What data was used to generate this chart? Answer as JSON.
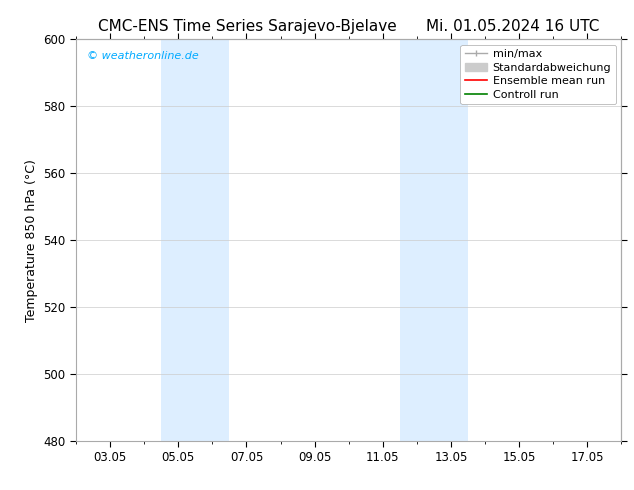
{
  "title_left": "CMC-ENS Time Series Sarajevo-Bjelave",
  "title_right": "Mi. 01.05.2024 16 UTC",
  "ylabel": "Temperature 850 hPa (°C)",
  "ylim": [
    480,
    600
  ],
  "yticks": [
    480,
    500,
    520,
    540,
    560,
    580,
    600
  ],
  "xtick_labels": [
    "03.05",
    "05.05",
    "07.05",
    "09.05",
    "11.05",
    "13.05",
    "15.05",
    "17.05"
  ],
  "xtick_positions": [
    2,
    4,
    6,
    8,
    10,
    12,
    14,
    16
  ],
  "xlim": [
    1,
    17
  ],
  "background_color": "#ffffff",
  "plot_bg_color": "#ffffff",
  "shaded_bands": [
    {
      "x_start": 3.5,
      "x_end": 5.5,
      "color": "#ddeeff"
    },
    {
      "x_start": 10.5,
      "x_end": 12.5,
      "color": "#ddeeff"
    }
  ],
  "watermark_text": "© weatheronline.de",
  "watermark_color": "#00aaff",
  "title_fontsize": 11,
  "axis_label_fontsize": 9,
  "tick_fontsize": 8.5,
  "legend_fontsize": 8,
  "grid_color": "#cccccc",
  "border_color": "#aaaaaa"
}
